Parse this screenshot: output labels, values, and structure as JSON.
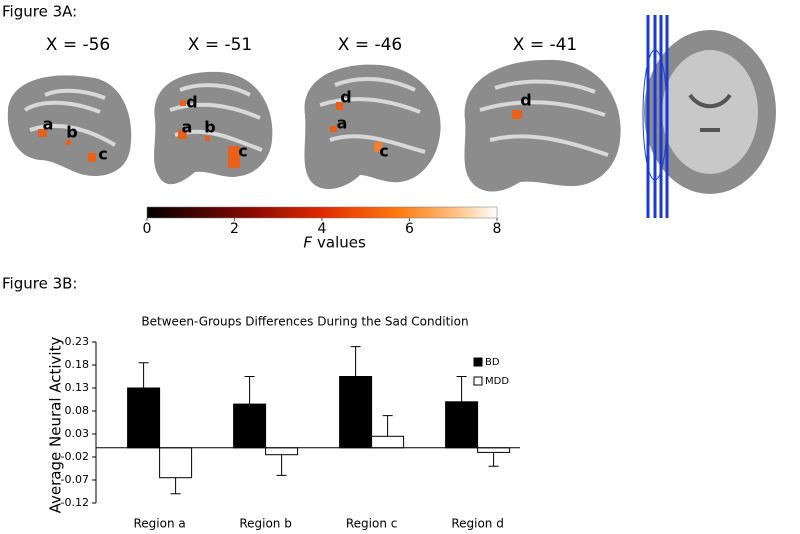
{
  "figure_a": {
    "label": "Figure 3A:",
    "slices": [
      {
        "label": "X = -56",
        "regions": [
          "a",
          "b",
          "c"
        ]
      },
      {
        "label": "X = -51",
        "regions": [
          "d",
          "a",
          "b",
          "c"
        ]
      },
      {
        "label": "X = -46",
        "regions": [
          "d",
          "a",
          "c"
        ]
      },
      {
        "label": "X = -41",
        "regions": [
          "d"
        ]
      }
    ],
    "colorbar": {
      "lim": [
        0,
        8
      ],
      "ticks": [
        0,
        2,
        4,
        6,
        8
      ],
      "label": [
        "F",
        "values"
      ]
    }
  },
  "figure_b": {
    "label": "Figure 3B:"
  },
  "chart_data": {
    "type": "bar",
    "title": "Between-Groups Differences During the Sad Condition",
    "ylabel": "Average Neural Activity",
    "categories": [
      "Region a",
      "Region b",
      "Region c",
      "Region d"
    ],
    "series": [
      {
        "name": "BD",
        "color": "#000000",
        "values": [
          0.13,
          0.095,
          0.155,
          0.1
        ],
        "errors": [
          0.055,
          0.06,
          0.065,
          0.055
        ]
      },
      {
        "name": "MDD",
        "color": "#ffffff",
        "values": [
          -0.065,
          -0.015,
          0.025,
          -0.01
        ],
        "errors": [
          0.035,
          0.045,
          0.045,
          0.03
        ]
      }
    ],
    "ylim": [
      -0.12,
      0.23
    ],
    "yticks": [
      -0.12,
      -0.07,
      -0.02,
      0.03,
      0.08,
      0.13,
      0.18,
      0.23
    ],
    "legend": "upper right"
  }
}
